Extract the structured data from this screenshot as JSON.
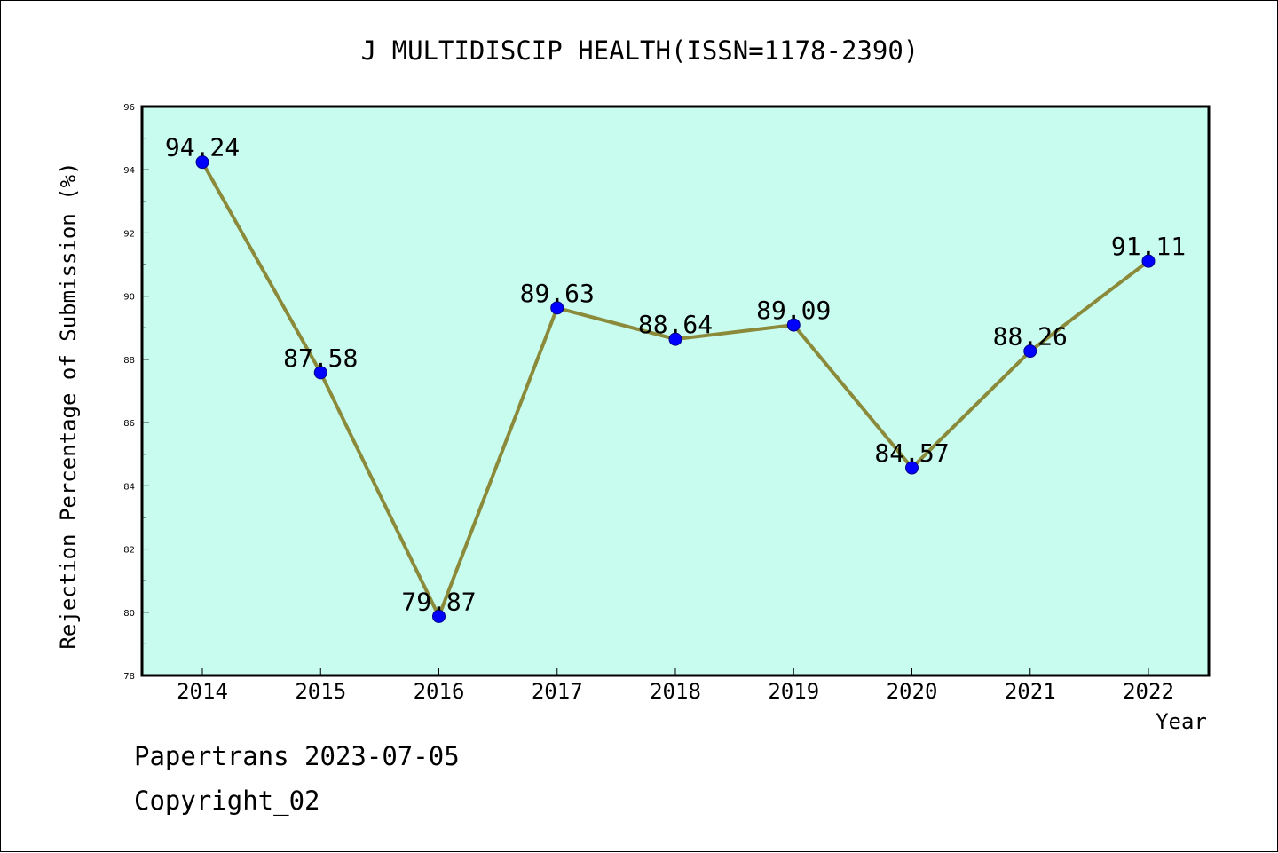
{
  "chart_data": {
    "type": "line",
    "title": "J MULTIDISCIP HEALTH(ISSN=1178-2390)",
    "xlabel": "Year",
    "ylabel": "Rejection Percentage of Submission (%)",
    "categories": [
      "2014",
      "2015",
      "2016",
      "2017",
      "2018",
      "2019",
      "2020",
      "2021",
      "2022"
    ],
    "series": [
      {
        "values": [
          94.24,
          87.58,
          79.87,
          89.63,
          88.64,
          89.09,
          84.57,
          88.26,
          91.11
        ],
        "labels": [
          "94.24",
          "87.58",
          "79.87",
          "89.63",
          "88.64",
          "89.09",
          "84.57",
          "88.26",
          "91.11"
        ],
        "line_color": "#8b8a3a",
        "marker_color": "#0000ff"
      }
    ],
    "ylim": [
      78,
      96
    ],
    "yticks": [
      "78",
      "80",
      "82",
      "84",
      "86",
      "88",
      "90",
      "92",
      "94",
      "96"
    ],
    "plot_background": "#c8fcee",
    "grid": false,
    "legend": "none"
  },
  "footer": {
    "line1": "Papertrans 2023-07-05",
    "line2": "Copyright_02"
  }
}
